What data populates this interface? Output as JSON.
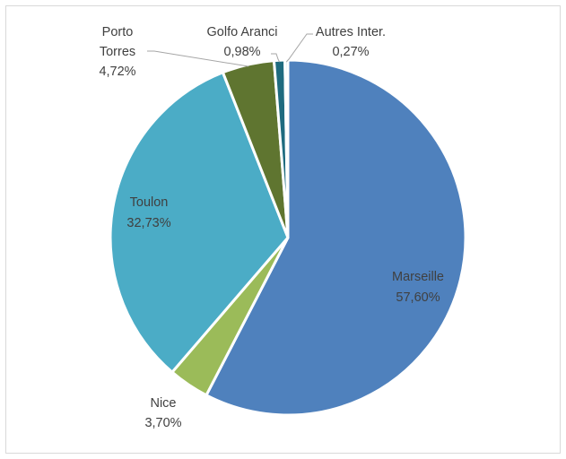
{
  "chart_data": {
    "type": "pie",
    "title": "",
    "legend": "none",
    "slices": [
      {
        "name": "Marseille",
        "label": "57,60%",
        "value": 57.6,
        "color": "#4f81bd"
      },
      {
        "name": "Nice",
        "label": "3,70%",
        "value": 3.7,
        "color": "#9bbb59"
      },
      {
        "name": "Toulon",
        "label": "32,73%",
        "value": 32.73,
        "color": "#4bacc6"
      },
      {
        "name": "Porto Torres",
        "label": "4,72%",
        "value": 4.72,
        "color": "#5f7530"
      },
      {
        "name": "Golfo Aranci",
        "label": "0,98%",
        "value": 0.98,
        "color": "#1f6b7f"
      },
      {
        "name": "Autres Inter.",
        "label": "0,27%",
        "value": 0.27,
        "color": "#b7dee8"
      }
    ]
  }
}
